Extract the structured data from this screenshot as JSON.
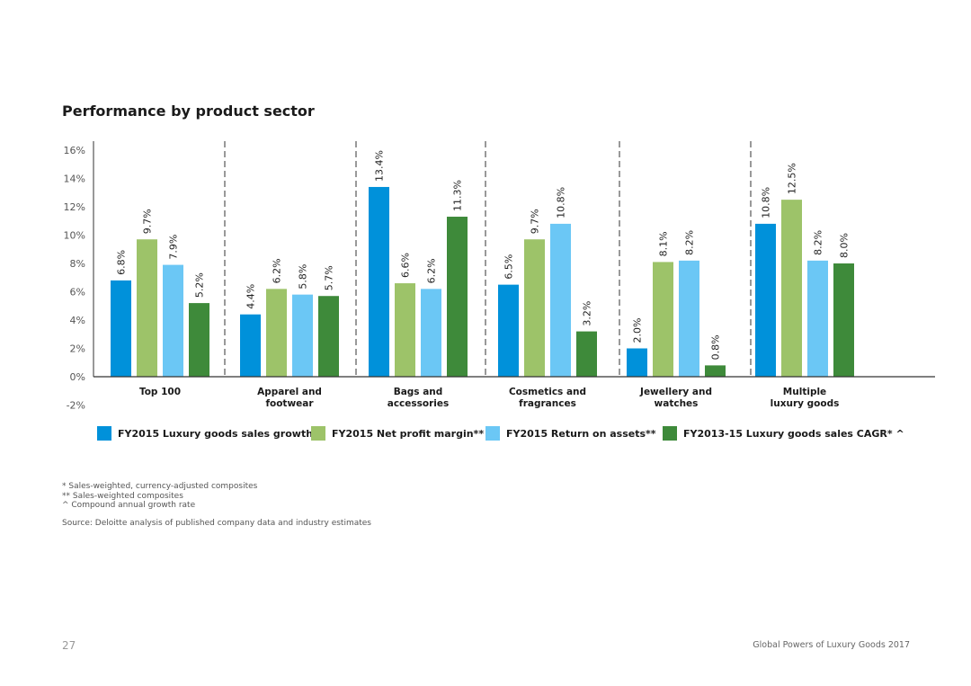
{
  "title": "Performance by product sector",
  "chart_data": {
    "type": "bar",
    "title": "Performance by product sector",
    "categories": [
      "Top 100",
      "Apparel and footwear",
      "Bags and accessories",
      "Cosmetics and fragrances",
      "Jewellery and watches",
      "Multiple luxury goods"
    ],
    "category_lines": [
      [
        "Top 100"
      ],
      [
        "Apparel and",
        "footwear"
      ],
      [
        "Bags and",
        "accessories"
      ],
      [
        "Cosmetics and",
        "fragrances"
      ],
      [
        "Jewellery and",
        "watches"
      ],
      [
        "Multiple",
        "luxury goods"
      ]
    ],
    "series": [
      {
        "name": "FY2015 Luxury goods sales growth*",
        "color": "#0091da",
        "values": [
          6.8,
          4.4,
          13.4,
          6.5,
          2.0,
          10.8
        ],
        "labels": [
          "6.8%",
          "4.4%",
          "13.4%",
          "6.5%",
          "2.0%",
          "10.8%"
        ]
      },
      {
        "name": "FY2015 Net profit margin**",
        "color": "#9dc369",
        "values": [
          9.7,
          6.2,
          6.6,
          9.7,
          8.1,
          12.5
        ],
        "labels": [
          "9.7%",
          "6.2%",
          "6.6%",
          "9.7%",
          "8.1%",
          "12.5%"
        ]
      },
      {
        "name": "FY2015 Return on assets**",
        "color": "#6bc7f5",
        "values": [
          7.9,
          5.8,
          6.2,
          10.8,
          8.2,
          8.2
        ],
        "labels": [
          "7.9%",
          "5.8%",
          "6.2%",
          "10.8%",
          "8.2%",
          "8.2%"
        ]
      },
      {
        "name": "FY2013-15 Luxury goods sales CAGR* ^",
        "color": "#3e8a3a",
        "values": [
          5.2,
          5.7,
          11.3,
          3.2,
          0.8,
          8.0
        ],
        "labels": [
          "5.2%",
          "5.7%",
          "11.3%",
          "3.2%",
          "0.8%",
          "8.0%"
        ]
      }
    ],
    "ylim": [
      -2,
      16
    ],
    "yticks": [
      -2,
      0,
      2,
      4,
      6,
      8,
      10,
      12,
      14,
      16
    ],
    "ytick_labels": [
      "-2%",
      "0%",
      "2%",
      "4%",
      "6%",
      "8%",
      "10%",
      "12%",
      "14%",
      "16%"
    ],
    "xlabel": "",
    "ylabel": "",
    "grid": false,
    "legend_position": "bottom"
  },
  "legend": [
    {
      "label": "FY2015 Luxury goods sales growth*",
      "color": "#0091da"
    },
    {
      "label": "FY2015 Net profit margin**",
      "color": "#9dc369"
    },
    {
      "label": "FY2015 Return on assets**",
      "color": "#6bc7f5"
    },
    {
      "label": "FY2013-15 Luxury goods sales CAGR* ^",
      "color": "#3e8a3a"
    }
  ],
  "footnotes": [
    "* Sales-weighted, currency-adjusted composites",
    "** Sales-weighted composites",
    "^ Compound annual growth rate"
  ],
  "source": "Source: Deloitte analysis of published company data and industry estimates",
  "page_number": "27",
  "report_name": "Global Powers of Luxury Goods 2017"
}
